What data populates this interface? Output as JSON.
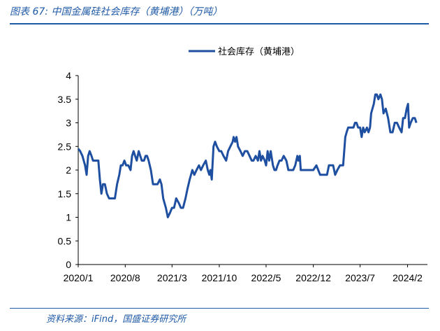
{
  "header": {
    "title": "图表 67:  中国金属硅社会库存（黄埔港）（万吨）"
  },
  "footer": {
    "source": "资料来源：iFind，国盛证券研究所"
  },
  "colors": {
    "accent": "#1f5aa6",
    "line": "#1f4fa0",
    "axis": "#000000"
  },
  "chart_data": {
    "type": "line",
    "title": "图表 67:  中国金属硅社会库存（黄埔港）（万吨）",
    "xlabel": "",
    "ylabel": "",
    "ylim": [
      0,
      4
    ],
    "xlim": [
      "2020-01",
      "2024-05"
    ],
    "y_ticks": [
      "0",
      "0.5",
      "1",
      "1.5",
      "2",
      "2.5",
      "3",
      "3.5",
      "4"
    ],
    "x_ticks": [
      {
        "label": "2020/1",
        "x": "2020-01"
      },
      {
        "label": "2020/8",
        "x": "2020-08"
      },
      {
        "label": "2021/3",
        "x": "2021-03"
      },
      {
        "label": "2021/10",
        "x": "2021-10"
      },
      {
        "label": "2022/5",
        "x": "2022-05"
      },
      {
        "label": "2022/12",
        "x": "2022-12"
      },
      {
        "label": "2023/7",
        "x": "2023-07"
      },
      {
        "label": "2024/2",
        "x": "2024-02"
      }
    ],
    "grid": false,
    "legend": "top-center",
    "series": [
      {
        "name": "社会库存（黄埔港）",
        "points": [
          [
            "2020-01-01",
            2.45
          ],
          [
            "2020-01-10",
            2.4
          ],
          [
            "2020-01-20",
            2.3
          ],
          [
            "2020-02-01",
            2.1
          ],
          [
            "2020-02-08",
            1.9
          ],
          [
            "2020-02-15",
            2.3
          ],
          [
            "2020-02-22",
            2.4
          ],
          [
            "2020-03-01",
            2.3
          ],
          [
            "2020-03-08",
            2.2
          ],
          [
            "2020-03-20",
            2.2
          ],
          [
            "2020-04-01",
            2.2
          ],
          [
            "2020-04-08",
            1.8
          ],
          [
            "2020-04-15",
            1.5
          ],
          [
            "2020-04-22",
            1.7
          ],
          [
            "2020-05-01",
            1.7
          ],
          [
            "2020-05-10",
            1.5
          ],
          [
            "2020-05-20",
            1.4
          ],
          [
            "2020-06-01",
            1.4
          ],
          [
            "2020-06-15",
            1.4
          ],
          [
            "2020-06-25",
            1.7
          ],
          [
            "2020-07-05",
            1.9
          ],
          [
            "2020-07-12",
            2.1
          ],
          [
            "2020-07-20",
            2.1
          ],
          [
            "2020-07-28",
            2.2
          ],
          [
            "2020-08-05",
            2.1
          ],
          [
            "2020-08-15",
            2.1
          ],
          [
            "2020-08-25",
            2.0
          ],
          [
            "2020-09-01",
            2.3
          ],
          [
            "2020-09-08",
            2.4
          ],
          [
            "2020-09-15",
            2.3
          ],
          [
            "2020-09-22",
            2.2
          ],
          [
            "2020-10-01",
            2.4
          ],
          [
            "2020-10-08",
            2.3
          ],
          [
            "2020-10-15",
            2.2
          ],
          [
            "2020-10-25",
            2.2
          ],
          [
            "2020-11-01",
            2.3
          ],
          [
            "2020-11-08",
            2.3
          ],
          [
            "2020-11-15",
            2.2
          ],
          [
            "2020-11-25",
            2.0
          ],
          [
            "2020-12-05",
            1.7
          ],
          [
            "2020-12-15",
            1.7
          ],
          [
            "2020-12-25",
            1.7
          ],
          [
            "2021-01-05",
            1.8
          ],
          [
            "2021-01-12",
            1.7
          ],
          [
            "2021-01-20",
            1.4
          ],
          [
            "2021-02-01",
            1.2
          ],
          [
            "2021-02-10",
            1.0
          ],
          [
            "2021-02-20",
            1.1
          ],
          [
            "2021-03-01",
            1.2
          ],
          [
            "2021-03-10",
            1.2
          ],
          [
            "2021-03-20",
            1.4
          ],
          [
            "2021-04-01",
            1.3
          ],
          [
            "2021-04-10",
            1.2
          ],
          [
            "2021-04-20",
            1.2
          ],
          [
            "2021-05-01",
            1.4
          ],
          [
            "2021-05-10",
            1.6
          ],
          [
            "2021-05-20",
            1.8
          ],
          [
            "2021-06-01",
            2.0
          ],
          [
            "2021-06-10",
            1.9
          ],
          [
            "2021-06-20",
            2.0
          ],
          [
            "2021-07-01",
            2.1
          ],
          [
            "2021-07-10",
            2.0
          ],
          [
            "2021-07-20",
            2.1
          ],
          [
            "2021-08-01",
            2.2
          ],
          [
            "2021-08-10",
            2.0
          ],
          [
            "2021-08-17",
            1.9
          ],
          [
            "2021-08-22",
            2.0
          ],
          [
            "2021-08-28",
            1.8
          ],
          [
            "2021-09-05",
            2.5
          ],
          [
            "2021-09-12",
            2.6
          ],
          [
            "2021-09-20",
            2.5
          ],
          [
            "2021-10-01",
            2.4
          ],
          [
            "2021-10-10",
            2.4
          ],
          [
            "2021-10-20",
            2.3
          ],
          [
            "2021-11-01",
            2.2
          ],
          [
            "2021-11-10",
            2.4
          ],
          [
            "2021-11-20",
            2.5
          ],
          [
            "2021-12-01",
            2.6
          ],
          [
            "2021-12-05",
            2.7
          ],
          [
            "2021-12-12",
            2.6
          ],
          [
            "2021-12-18",
            2.7
          ],
          [
            "2021-12-25",
            2.5
          ],
          [
            "2022-01-05",
            2.4
          ],
          [
            "2022-01-15",
            2.3
          ],
          [
            "2022-01-25",
            2.4
          ],
          [
            "2022-02-05",
            2.4
          ],
          [
            "2022-02-15",
            2.3
          ],
          [
            "2022-02-25",
            2.2
          ],
          [
            "2022-03-05",
            2.2
          ],
          [
            "2022-03-15",
            2.3
          ],
          [
            "2022-03-25",
            2.2
          ],
          [
            "2022-04-01",
            2.4
          ],
          [
            "2022-04-08",
            2.2
          ],
          [
            "2022-04-15",
            2.3
          ],
          [
            "2022-04-25",
            2.2
          ],
          [
            "2022-05-01",
            2.1
          ],
          [
            "2022-05-08",
            2.4
          ],
          [
            "2022-05-15",
            2.2
          ],
          [
            "2022-05-22",
            2.4
          ],
          [
            "2022-06-01",
            2.1
          ],
          [
            "2022-06-08",
            2.0
          ],
          [
            "2022-06-15",
            2.0
          ],
          [
            "2022-06-22",
            2.1
          ],
          [
            "2022-07-01",
            2.2
          ],
          [
            "2022-07-10",
            2.2
          ],
          [
            "2022-07-20",
            2.3
          ],
          [
            "2022-08-01",
            2.2
          ],
          [
            "2022-08-10",
            2.0
          ],
          [
            "2022-08-20",
            2.0
          ],
          [
            "2022-09-01",
            2.0
          ],
          [
            "2022-09-10",
            2.1
          ],
          [
            "2022-09-15",
            2.2
          ],
          [
            "2022-09-20",
            2.3
          ],
          [
            "2022-09-25",
            2.2
          ],
          [
            "2022-10-01",
            2.3
          ],
          [
            "2022-10-05",
            2.0
          ],
          [
            "2022-10-15",
            2.0
          ],
          [
            "2022-11-01",
            2.0
          ],
          [
            "2022-11-15",
            2.0
          ],
          [
            "2022-12-01",
            2.0
          ],
          [
            "2022-12-15",
            2.1
          ],
          [
            "2023-01-01",
            1.9
          ],
          [
            "2023-01-15",
            1.9
          ],
          [
            "2023-02-01",
            1.9
          ],
          [
            "2023-02-10",
            2.1
          ],
          [
            "2023-02-20",
            2.1
          ],
          [
            "2023-03-01",
            2.1
          ],
          [
            "2023-03-10",
            1.9
          ],
          [
            "2023-03-20",
            2.0
          ],
          [
            "2023-04-01",
            2.1
          ],
          [
            "2023-04-15",
            2.1
          ],
          [
            "2023-04-25",
            2.7
          ],
          [
            "2023-05-01",
            2.8
          ],
          [
            "2023-05-08",
            2.9
          ],
          [
            "2023-05-20",
            2.9
          ],
          [
            "2023-06-01",
            2.9
          ],
          [
            "2023-06-08",
            3.0
          ],
          [
            "2023-06-15",
            3.0
          ],
          [
            "2023-06-22",
            2.9
          ],
          [
            "2023-07-01",
            2.9
          ],
          [
            "2023-07-08",
            2.7
          ],
          [
            "2023-07-15",
            2.9
          ],
          [
            "2023-07-22",
            2.8
          ],
          [
            "2023-08-01",
            2.9
          ],
          [
            "2023-08-08",
            2.8
          ],
          [
            "2023-08-15",
            2.9
          ],
          [
            "2023-08-20",
            3.2
          ],
          [
            "2023-09-01",
            3.4
          ],
          [
            "2023-09-08",
            3.6
          ],
          [
            "2023-09-15",
            3.6
          ],
          [
            "2023-09-22",
            3.5
          ],
          [
            "2023-10-01",
            3.6
          ],
          [
            "2023-10-08",
            3.5
          ],
          [
            "2023-10-15",
            3.2
          ],
          [
            "2023-10-25",
            3.3
          ],
          [
            "2023-11-05",
            3.1
          ],
          [
            "2023-11-15",
            2.8
          ],
          [
            "2023-11-25",
            2.8
          ],
          [
            "2023-12-05",
            3.0
          ],
          [
            "2023-12-15",
            3.0
          ],
          [
            "2023-12-25",
            2.9
          ],
          [
            "2024-01-05",
            2.8
          ],
          [
            "2024-01-12",
            3.1
          ],
          [
            "2024-01-20",
            3.1
          ],
          [
            "2024-01-28",
            3.3
          ],
          [
            "2024-02-03",
            3.4
          ],
          [
            "2024-02-08",
            2.9
          ],
          [
            "2024-02-15",
            3.0
          ],
          [
            "2024-02-25",
            3.1
          ],
          [
            "2024-03-05",
            3.1
          ],
          [
            "2024-03-12",
            3.0
          ]
        ]
      }
    ]
  }
}
